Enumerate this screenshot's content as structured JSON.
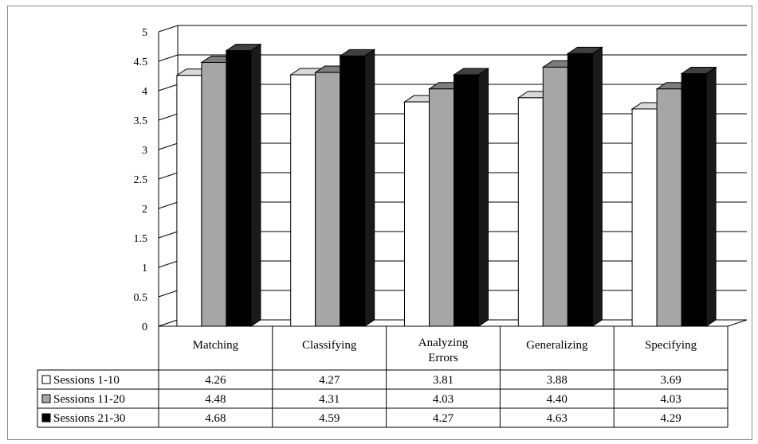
{
  "chart_data": {
    "type": "bar",
    "title": "",
    "xlabel": "",
    "ylabel": "",
    "ylim": [
      0,
      5
    ],
    "yticks": [
      "0",
      "0.5",
      "1",
      "1.5",
      "2",
      "2.5",
      "3",
      "3.5",
      "4",
      "4.5",
      "5"
    ],
    "categories": [
      "Matching",
      "Classifying",
      "Analyzing Errors",
      "Generalizing",
      "Specifying"
    ],
    "series": [
      {
        "name": "Sessions 1-10",
        "color": "#ffffff",
        "values": [
          4.26,
          4.27,
          3.81,
          3.88,
          3.69
        ],
        "labels": [
          "4.26",
          "4.27",
          "3.81",
          "3.88",
          "3.69"
        ]
      },
      {
        "name": "Sessions 11-20",
        "color": "#a6a6a6",
        "values": [
          4.48,
          4.31,
          4.03,
          4.4,
          4.03
        ],
        "labels": [
          "4.48",
          "4.31",
          "4.03",
          "4.40",
          "4.03"
        ]
      },
      {
        "name": "Sessions 21-30",
        "color": "#000000",
        "values": [
          4.68,
          4.59,
          4.27,
          4.63,
          4.29
        ],
        "labels": [
          "4.68",
          "4.59",
          "4.27",
          "4.63",
          "4.29"
        ]
      }
    ],
    "grid": true,
    "three_d": true,
    "data_table": true,
    "legend": "in-data-table"
  }
}
